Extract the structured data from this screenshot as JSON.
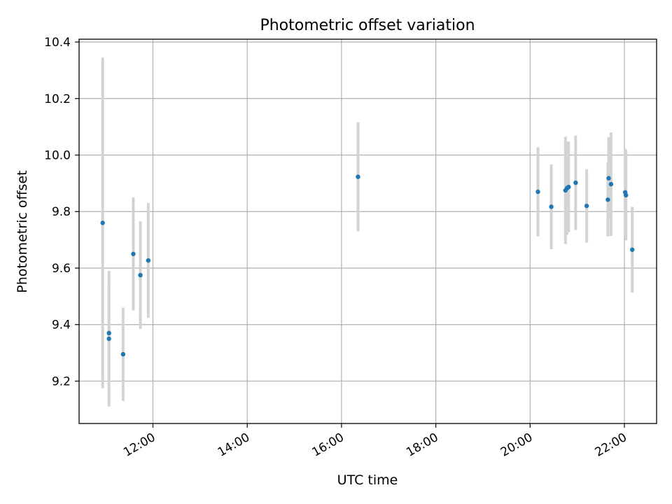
{
  "chart_data": {
    "type": "scatter",
    "title": "Photometric offset variation",
    "xlabel": "UTC time",
    "ylabel": "Photometric offset",
    "xlim": [
      "10:26",
      "22:41"
    ],
    "ylim": [
      9.05,
      10.41
    ],
    "x_ticks": [
      "12:00",
      "14:00",
      "16:00",
      "18:00",
      "20:00",
      "22:00"
    ],
    "y_ticks": [
      9.2,
      9.4,
      9.6,
      9.8,
      10.0,
      10.2,
      10.4
    ],
    "y_tick_labels": [
      "9.2",
      "9.4",
      "9.6",
      "9.8",
      "10.0",
      "10.2",
      "10.4"
    ],
    "grid": true,
    "colors": {
      "marker": "#1f77b4",
      "errorbar": "#d3d3d3",
      "grid": "#b0b0b0"
    },
    "points": [
      {
        "x": "10:56",
        "y": 9.76,
        "err": 0.585
      },
      {
        "x": "11:04",
        "y": 9.37,
        "err": 0.17
      },
      {
        "x": "11:04",
        "y": 9.35,
        "err": 0.24
      },
      {
        "x": "11:22",
        "y": 9.295,
        "err": 0.165
      },
      {
        "x": "11:35",
        "y": 9.65,
        "err": 0.2
      },
      {
        "x": "11:44",
        "y": 9.575,
        "err": 0.19
      },
      {
        "x": "11:54",
        "y": 9.627,
        "err": 0.203
      },
      {
        "x": "16:21",
        "y": 9.923,
        "err": 0.193
      },
      {
        "x": "20:10",
        "y": 9.87,
        "err": 0.158
      },
      {
        "x": "20:27",
        "y": 9.817,
        "err": 0.15
      },
      {
        "x": "20:45",
        "y": 9.875,
        "err": 0.19
      },
      {
        "x": "20:47",
        "y": 9.883,
        "err": 0.165
      },
      {
        "x": "20:49",
        "y": 9.887,
        "err": 0.16
      },
      {
        "x": "20:58",
        "y": 9.902,
        "err": 0.167
      },
      {
        "x": "21:12",
        "y": 9.82,
        "err": 0.13
      },
      {
        "x": "21:39",
        "y": 9.842,
        "err": 0.13
      },
      {
        "x": "21:40",
        "y": 9.918,
        "err": 0.145
      },
      {
        "x": "21:43",
        "y": 9.897,
        "err": 0.183
      },
      {
        "x": "22:01",
        "y": 9.868,
        "err": 0.155
      },
      {
        "x": "22:02",
        "y": 9.858,
        "err": 0.16
      },
      {
        "x": "22:10",
        "y": 9.665,
        "err": 0.152
      }
    ]
  }
}
